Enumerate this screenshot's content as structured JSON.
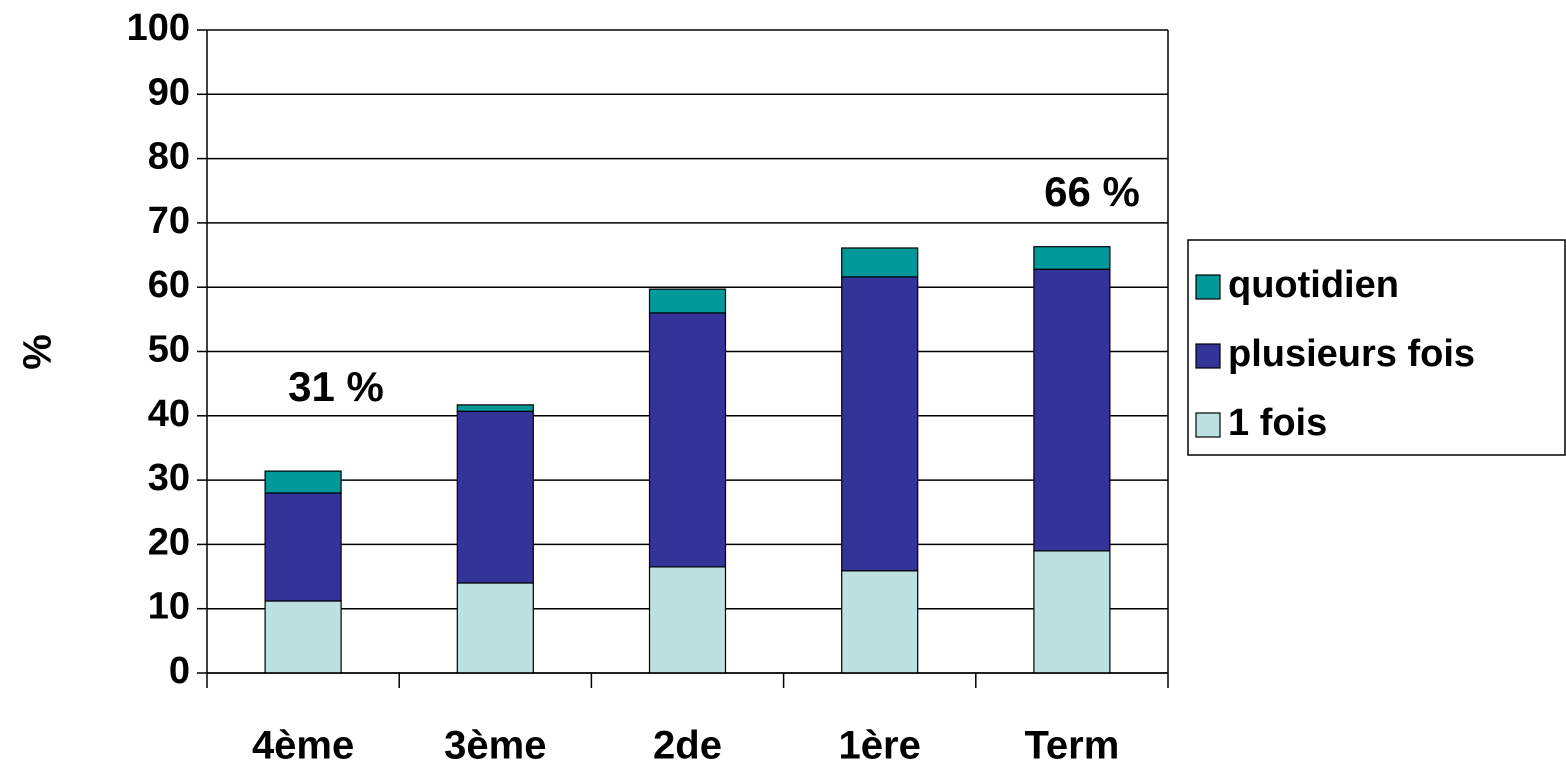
{
  "chart_data": {
    "type": "stacked_bar",
    "y_label": "%",
    "categories": [
      "4ème",
      "3ème",
      "2de",
      "1ère",
      "Term"
    ],
    "series": [
      {
        "name": "1 fois",
        "color": "#bde0e0",
        "values": [
          11.2,
          14.0,
          16.5,
          15.9,
          19.0
        ]
      },
      {
        "name": "plusieurs fois",
        "color": "#333399",
        "values": [
          16.8,
          26.7,
          39.5,
          45.7,
          43.8
        ]
      },
      {
        "name": "quotidien",
        "color": "#009999",
        "values": [
          3.4,
          1.0,
          3.7,
          4.5,
          3.5
        ]
      }
    ],
    "annotations": [
      "31 %",
      "66 %"
    ],
    "ylim": [
      0,
      100
    ],
    "yticks": [
      0,
      10,
      20,
      30,
      40,
      50,
      60,
      70,
      80,
      90,
      100
    ],
    "grid": true,
    "legend": "right"
  }
}
